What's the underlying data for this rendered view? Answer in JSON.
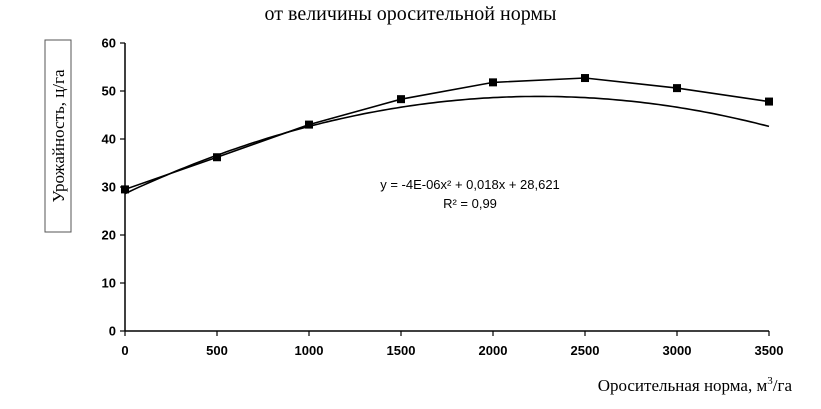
{
  "chart_data": {
    "type": "scatter",
    "title": "от величины оросительной нормы",
    "xlabel": "Оросительная норма, м³/га",
    "xlabel_main": "Оросительная норма, м",
    "xlabel_sup": "3",
    "xlabel_unit": "/га",
    "ylabel": "Урожайность, ц/га",
    "xlim": [
      0,
      3500
    ],
    "ylim": [
      0,
      60
    ],
    "x_ticks": [
      "0",
      "500",
      "1000",
      "1500",
      "2000",
      "2500",
      "3000",
      "3500"
    ],
    "y_ticks": [
      "0",
      "10",
      "20",
      "30",
      "40",
      "50",
      "60"
    ],
    "grid": false,
    "series": [
      {
        "x": [
          0,
          500,
          1000,
          1500,
          2000,
          2500,
          3000,
          3500
        ],
        "values": [
          29.5,
          36.2,
          43.0,
          48.3,
          51.8,
          52.7,
          50.6,
          47.8
        ]
      }
    ],
    "trendline": {
      "type": "polynomial",
      "coefficients": [
        -4e-06,
        0.018,
        28.621
      ],
      "equation": "y = -4E-06x² + 0,018x + 28,621",
      "r_squared": "R² = 0,99"
    },
    "colors": {
      "series": "#000000",
      "axis": "#000000"
    }
  }
}
